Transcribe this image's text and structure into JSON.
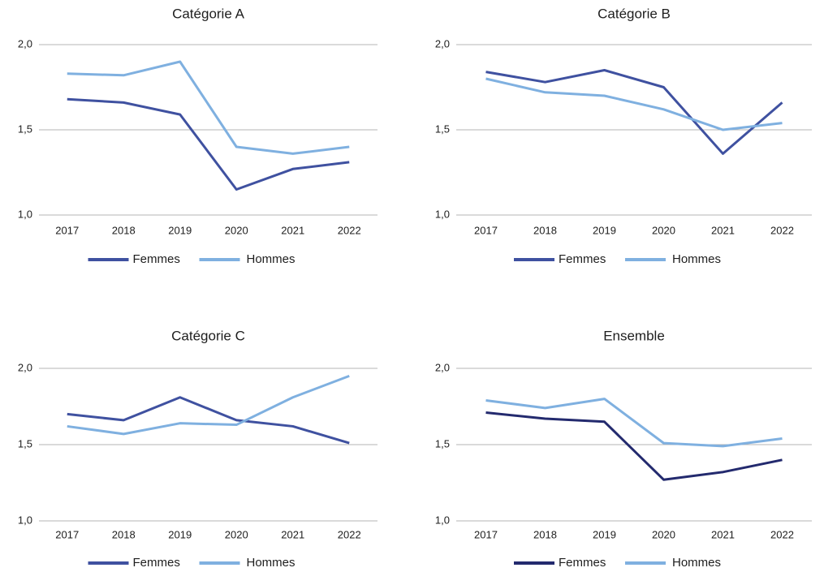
{
  "chart_data": [
    {
      "type": "line",
      "title": "Catégorie A",
      "categories": [
        "2017",
        "2018",
        "2019",
        "2020",
        "2021",
        "2022"
      ],
      "series": [
        {
          "name": "Femmes",
          "color": "#3f51a0",
          "values": [
            1.68,
            1.66,
            1.59,
            1.15,
            1.27,
            1.31
          ]
        },
        {
          "name": "Hommes",
          "color": "#7fb0e0",
          "values": [
            1.83,
            1.82,
            1.9,
            1.4,
            1.36,
            1.4
          ]
        }
      ],
      "ylim": [
        1.0,
        2.0
      ],
      "yticks": [
        {
          "value": 1.0,
          "label": "1,0"
        },
        {
          "value": 1.5,
          "label": "1,5"
        },
        {
          "value": 2.0,
          "label": "2,0"
        }
      ],
      "grid": true,
      "legend": "bottom"
    },
    {
      "type": "line",
      "title": "Catégorie B",
      "categories": [
        "2017",
        "2018",
        "2019",
        "2020",
        "2021",
        "2022"
      ],
      "series": [
        {
          "name": "Femmes",
          "color": "#3f51a0",
          "values": [
            1.84,
            1.78,
            1.85,
            1.75,
            1.36,
            1.66
          ]
        },
        {
          "name": "Hommes",
          "color": "#7fb0e0",
          "values": [
            1.8,
            1.72,
            1.7,
            1.62,
            1.5,
            1.54
          ]
        }
      ],
      "ylim": [
        1.0,
        2.0
      ],
      "yticks": [
        {
          "value": 1.0,
          "label": "1,0"
        },
        {
          "value": 1.5,
          "label": "1,5"
        },
        {
          "value": 2.0,
          "label": "2,0"
        }
      ],
      "grid": true,
      "legend": "bottom"
    },
    {
      "type": "line",
      "title": "Catégorie C",
      "categories": [
        "2017",
        "2018",
        "2019",
        "2020",
        "2021",
        "2022"
      ],
      "series": [
        {
          "name": "Femmes",
          "color": "#3f51a0",
          "values": [
            1.7,
            1.66,
            1.81,
            1.66,
            1.62,
            1.51
          ]
        },
        {
          "name": "Hommes",
          "color": "#7fb0e0",
          "values": [
            1.62,
            1.57,
            1.64,
            1.63,
            1.81,
            1.95
          ]
        }
      ],
      "ylim": [
        1.0,
        2.0
      ],
      "yticks": [
        {
          "value": 1.0,
          "label": "1,0"
        },
        {
          "value": 1.5,
          "label": "1,5"
        },
        {
          "value": 2.0,
          "label": "2,0"
        }
      ],
      "grid": true,
      "legend": "bottom"
    },
    {
      "type": "line",
      "title": "Ensemble",
      "categories": [
        "2017",
        "2018",
        "2019",
        "2020",
        "2021",
        "2022"
      ],
      "series": [
        {
          "name": "Femmes",
          "color": "#232a6e",
          "values": [
            1.71,
            1.67,
            1.65,
            1.27,
            1.32,
            1.4
          ]
        },
        {
          "name": "Hommes",
          "color": "#7fb0e0",
          "values": [
            1.79,
            1.74,
            1.8,
            1.51,
            1.49,
            1.54
          ]
        }
      ],
      "ylim": [
        1.0,
        2.0
      ],
      "yticks": [
        {
          "value": 1.0,
          "label": "1,0"
        },
        {
          "value": 1.5,
          "label": "1,5"
        },
        {
          "value": 2.0,
          "label": "2,0"
        }
      ],
      "grid": true,
      "legend": "bottom"
    }
  ]
}
